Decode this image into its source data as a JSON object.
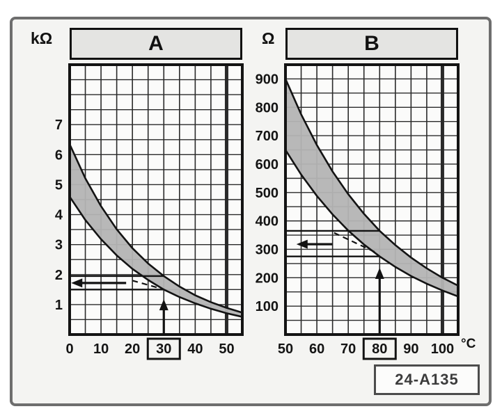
{
  "figure": {
    "code": "24-A135"
  },
  "colors": {
    "band": "#b4b4b4",
    "grid": "#2a2a2a",
    "curve": "#131313",
    "text": "#141414",
    "plot_bg": "#fbfbfa",
    "header_bg": "#e4e4e2",
    "frame_border": "#6e6e6e"
  },
  "chart_data": [
    {
      "id": "A",
      "type": "area",
      "title": "A",
      "y_unit": "kΩ",
      "x_unit": "°C",
      "x_range": [
        0,
        55
      ],
      "y_range": [
        0,
        9
      ],
      "x_grid_step": 5,
      "y_grid_step": 0.5,
      "x_major_line": 50,
      "x_ticks": [
        0,
        10,
        20,
        30,
        40,
        50
      ],
      "x_tick_boxed": 30,
      "y_ticks": [
        1,
        2,
        3,
        4,
        5,
        6,
        7
      ],
      "x": [
        0,
        5,
        10,
        15,
        20,
        25,
        30,
        35,
        40,
        45,
        50,
        55
      ],
      "series": [
        {
          "name": "upper_tolerance_kohm",
          "values": [
            6.35,
            5.21,
            4.28,
            3.51,
            2.88,
            2.37,
            1.95,
            1.6,
            1.31,
            1.08,
            0.89,
            0.73
          ]
        },
        {
          "name": "lower_tolerance_kohm",
          "values": [
            4.6,
            3.82,
            3.18,
            2.64,
            2.19,
            1.82,
            1.5,
            1.25,
            1.04,
            0.86,
            0.71,
            0.59
          ]
        }
      ],
      "annotations": {
        "h_lines": [
          {
            "y": 1.95,
            "x_end": 30
          },
          {
            "y": 1.5,
            "x_end": 30
          }
        ],
        "left_arrow": {
          "y": 1.72,
          "x_from": 0.5,
          "x_to": 18
        },
        "v_arrow": {
          "x": 30,
          "top": 1.18
        },
        "dashed": [
          [
            20,
            1.8
          ],
          [
            29.5,
            1.52
          ]
        ]
      }
    },
    {
      "id": "B",
      "type": "area",
      "title": "B",
      "y_unit": "Ω",
      "x_unit": "°C",
      "x_range": [
        50,
        105
      ],
      "y_range": [
        0,
        950
      ],
      "x_grid_step": 5,
      "y_grid_step": 50,
      "x_major_line": 100,
      "x_ticks": [
        50,
        60,
        70,
        80,
        90,
        100
      ],
      "x_tick_boxed": 80,
      "y_ticks": [
        100,
        200,
        300,
        400,
        500,
        600,
        700,
        800,
        900
      ],
      "x": [
        50,
        55,
        60,
        65,
        70,
        75,
        80,
        85,
        90,
        95,
        100,
        105
      ],
      "series": [
        {
          "name": "upper_tolerance_ohm",
          "values": [
            900,
            775,
            667,
            574,
            494,
            425,
            365,
            315,
            271,
            233,
            200,
            172
          ]
        },
        {
          "name": "lower_tolerance_ohm",
          "values": [
            650,
            563,
            488,
            423,
            366,
            317,
            275,
            238,
            206,
            179,
            155,
            134
          ]
        }
      ],
      "annotations": {
        "h_lines": [
          {
            "y": 365,
            "x_end": 80
          },
          {
            "y": 275,
            "x_end": 80
          }
        ],
        "left_arrow": {
          "y": 318,
          "x_from": 53.5,
          "x_to": 65
        },
        "v_arrow": {
          "x": 80,
          "top": 235
        },
        "dashed": [
          [
            65.5,
            358
          ],
          [
            79,
            288
          ]
        ]
      }
    }
  ]
}
